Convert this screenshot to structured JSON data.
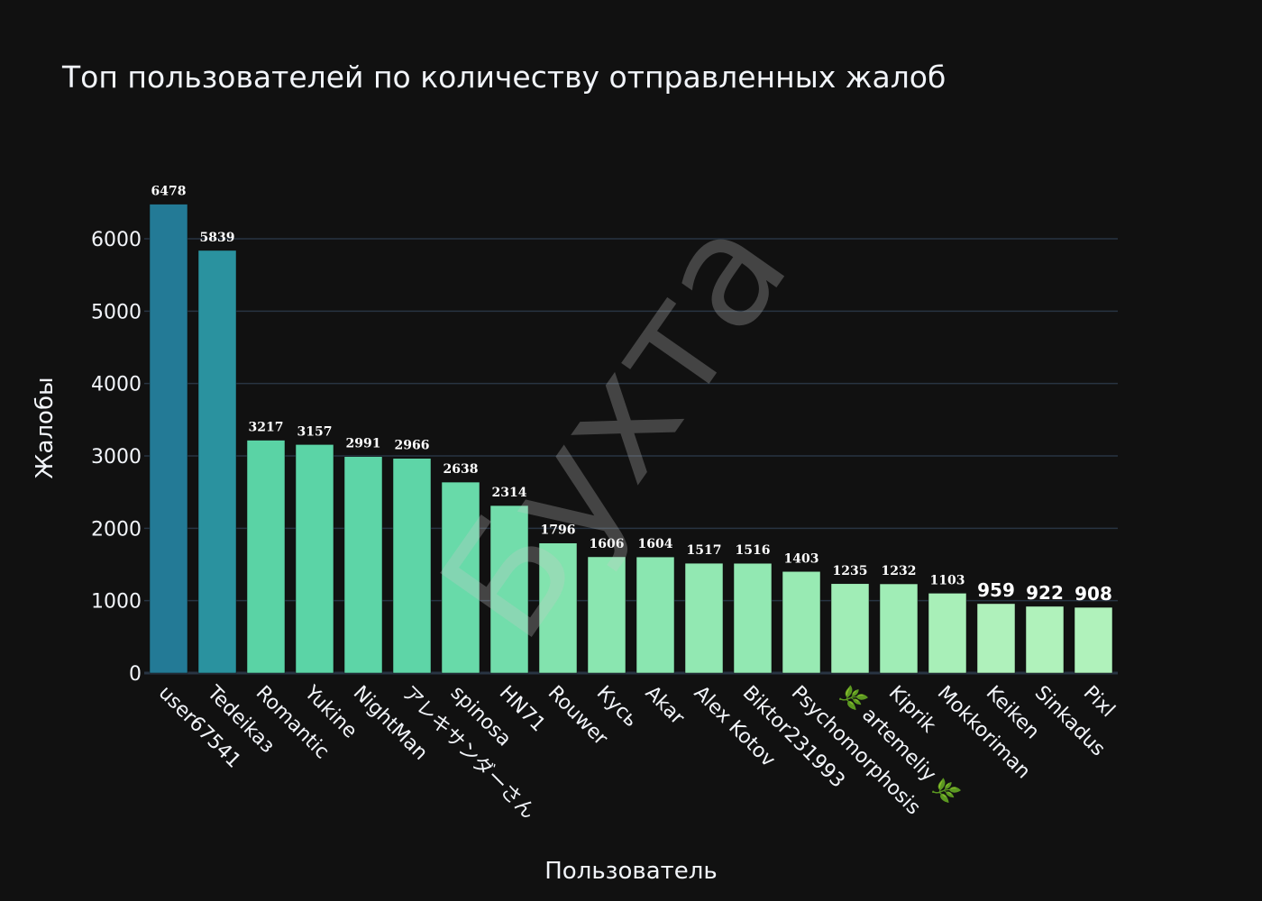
{
  "chart_data": {
    "type": "bar",
    "title": "Топ пользователей по количеству отправленных жалоб",
    "xlabel": "Пользователь",
    "ylabel": "Жалобы",
    "ylim": [
      0,
      6600
    ],
    "yticks": [
      0,
      1000,
      2000,
      3000,
      4000,
      5000,
      6000
    ],
    "grid": true,
    "categories": [
      "user67541",
      "Tedeikaз",
      "Romantic",
      "Yukine",
      "NightMan",
      "アレキサンダーさん",
      "spinosa",
      "HN71",
      "Rouwer",
      "Кусь",
      "Akar",
      "Alex Kotov",
      "Biktor231993",
      "Psychomorphosis",
      "🌿 artemeliy 🌿",
      "Kiprik",
      "Mokkoriman",
      "Keiken",
      "Sinkadus",
      "Pixl"
    ],
    "values": [
      6478,
      5839,
      3217,
      3157,
      2991,
      2966,
      2638,
      2314,
      1796,
      1606,
      1604,
      1517,
      1516,
      1403,
      1235,
      1232,
      1103,
      959,
      922,
      908
    ],
    "colors": [
      "#237a96",
      "#2a929f",
      "#5ad3a5",
      "#5bd4a6",
      "#5dd5a7",
      "#5ed5a7",
      "#68daa9",
      "#72ddab",
      "#82e3ae",
      "#8ae6b0",
      "#8ae6b0",
      "#92e8b2",
      "#92e8b2",
      "#98eab3",
      "#a0edb6",
      "#a0edb6",
      "#a8efb8",
      "#aff1bb",
      "#b0f2bb",
      "#b0f2bb"
    ],
    "watermark": "Бухта"
  }
}
